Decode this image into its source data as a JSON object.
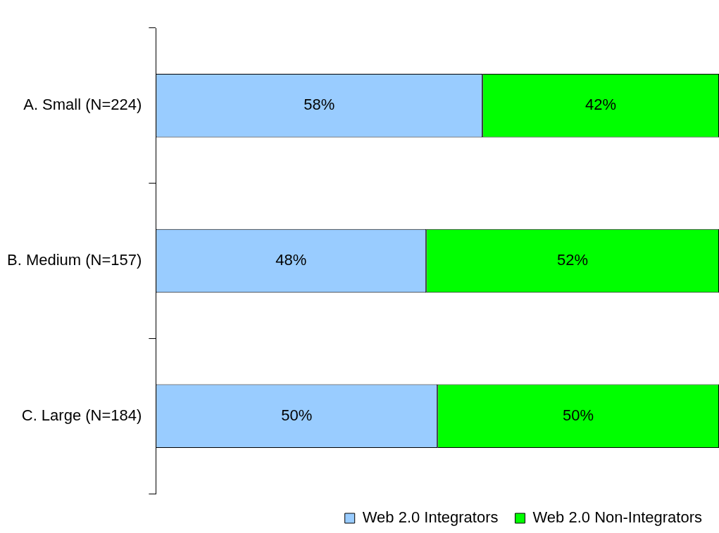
{
  "chart_data": {
    "type": "bar",
    "orientation": "horizontal",
    "stacked": true,
    "categories": [
      "A. Small (N=224)",
      "B. Medium (N=157)",
      "C. Large (N=184)"
    ],
    "xlim": [
      0,
      100
    ],
    "tick_labels": "y",
    "legend": "bottom",
    "grid": false,
    "series": [
      {
        "name": "Web 2.0 Integrators",
        "color": "#99ccff",
        "values": [
          58,
          48,
          50
        ],
        "value_labels": [
          "58%",
          "48%",
          "50%"
        ]
      },
      {
        "name": "Web 2.0 Non-Integrators",
        "color": "#00ff00",
        "values": [
          42,
          52,
          50
        ],
        "value_labels": [
          "42%",
          "52%",
          "50%"
        ]
      }
    ]
  }
}
